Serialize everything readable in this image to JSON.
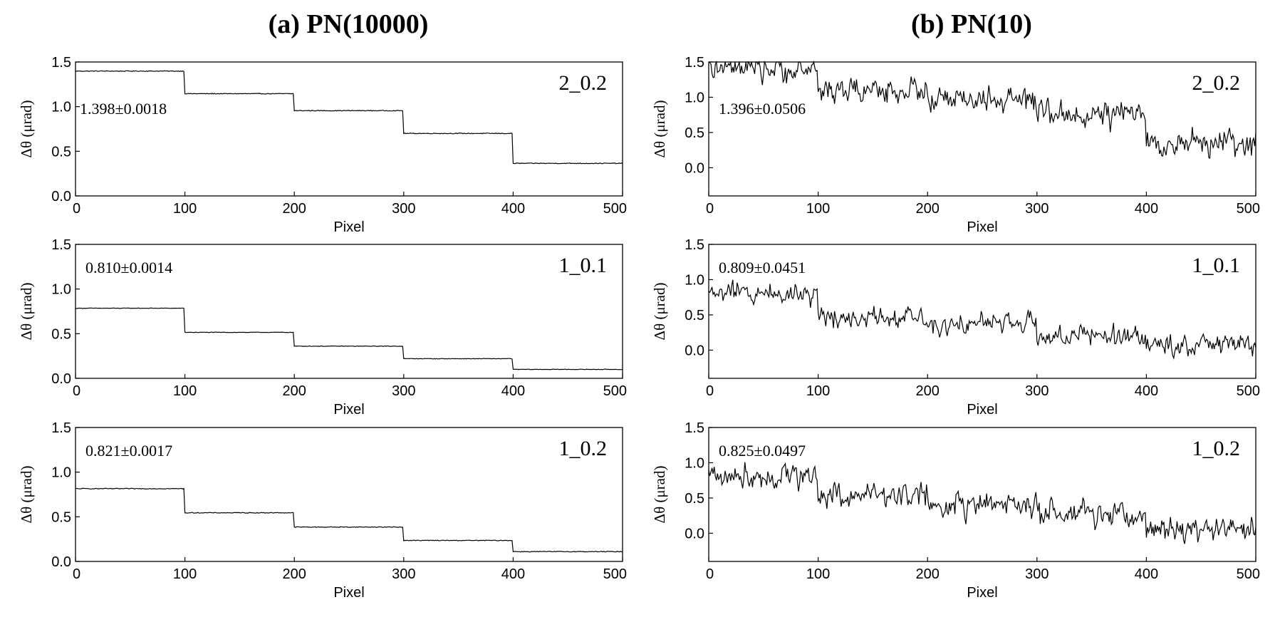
{
  "columns": [
    {
      "title": "(a) PN(10000)"
    },
    {
      "title": "(b) PN(10)"
    }
  ],
  "chart_data": [
    {
      "type": "line",
      "column": 0,
      "row": 0,
      "xlabel": "Pixel",
      "ylabel": "Δθ (μrad)",
      "xlim": [
        0,
        500
      ],
      "ylim": [
        0,
        1.5
      ],
      "xticks": [
        "0",
        "100",
        "200",
        "300",
        "400",
        "500"
      ],
      "yticks": [
        "0.0",
        "0.5",
        "1.0",
        "1.5"
      ],
      "corner_label": "2_0.2",
      "stat_label": "1.398±0.0018",
      "segments": [
        1.398,
        1.145,
        0.955,
        0.7,
        0.365
      ],
      "noise": 0.004
    },
    {
      "type": "line",
      "column": 0,
      "row": 1,
      "xlabel": "Pixel",
      "ylabel": "Δθ (μrad)",
      "xlim": [
        0,
        500
      ],
      "ylim": [
        0,
        1.5
      ],
      "xticks": [
        "0",
        "100",
        "200",
        "300",
        "400",
        "500"
      ],
      "yticks": [
        "0.0",
        "0.5",
        "1.0",
        "1.5"
      ],
      "corner_label": "1_0.1",
      "stat_label": "0.810±0.0014",
      "segments": [
        0.785,
        0.515,
        0.36,
        0.22,
        0.1
      ],
      "noise": 0.003
    },
    {
      "type": "line",
      "column": 0,
      "row": 2,
      "xlabel": "Pixel",
      "ylabel": "Δθ (μrad)",
      "xlim": [
        0,
        500
      ],
      "ylim": [
        0,
        1.5
      ],
      "xticks": [
        "0",
        "100",
        "200",
        "300",
        "400",
        "500"
      ],
      "yticks": [
        "0.0",
        "0.5",
        "1.0",
        "1.5"
      ],
      "corner_label": "1_0.2",
      "stat_label": "0.821±0.0017",
      "segments": [
        0.815,
        0.545,
        0.385,
        0.235,
        0.11
      ],
      "noise": 0.004
    },
    {
      "type": "line",
      "column": 1,
      "row": 0,
      "xlabel": "Pixel",
      "ylabel": "Δθ (μrad)",
      "xlim": [
        0,
        500
      ],
      "ylim": [
        -0.4,
        1.5
      ],
      "xticks": [
        "0",
        "100",
        "200",
        "300",
        "400",
        "500"
      ],
      "yticks": [
        "0.0",
        "0.5",
        "1.0",
        "1.5"
      ],
      "corner_label": "2_0.2",
      "stat_label": "1.396±0.0506",
      "segments": [
        1.396,
        1.1,
        0.95,
        0.75,
        0.35
      ],
      "noise": 0.13
    },
    {
      "type": "line",
      "column": 1,
      "row": 1,
      "xlabel": "Pixel",
      "ylabel": "Δθ (μrad)",
      "xlim": [
        0,
        500
      ],
      "ylim": [
        -0.4,
        1.5
      ],
      "xticks": [
        "0",
        "100",
        "200",
        "300",
        "400",
        "500"
      ],
      "yticks": [
        "0.0",
        "0.5",
        "1.0",
        "1.5"
      ],
      "corner_label": "1_0.1",
      "stat_label": "0.809±0.0451",
      "segments": [
        0.809,
        0.48,
        0.38,
        0.2,
        0.08
      ],
      "noise": 0.11
    },
    {
      "type": "line",
      "column": 1,
      "row": 2,
      "xlabel": "Pixel",
      "ylabel": "Δθ (μrad)",
      "xlim": [
        0,
        500
      ],
      "ylim": [
        -0.4,
        1.5
      ],
      "xticks": [
        "0",
        "100",
        "200",
        "300",
        "400",
        "500"
      ],
      "yticks": [
        "0.0",
        "0.5",
        "1.0",
        "1.5"
      ],
      "corner_label": "1_0.2",
      "stat_label": "0.825±0.0497",
      "segments": [
        0.825,
        0.55,
        0.4,
        0.25,
        0.06
      ],
      "noise": 0.13
    }
  ]
}
